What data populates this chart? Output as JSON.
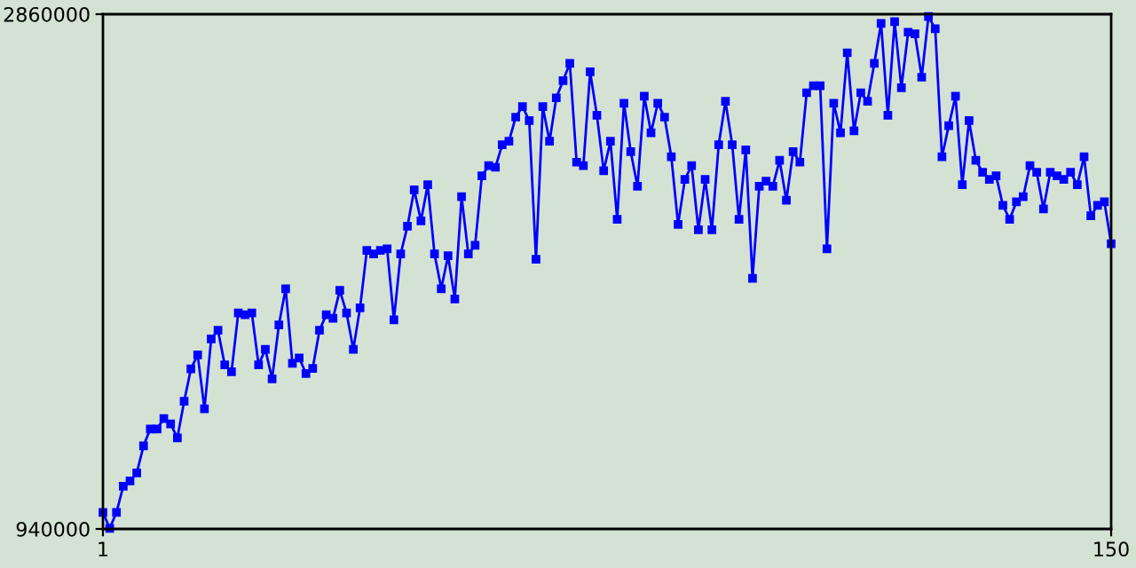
{
  "chart_data": {
    "type": "line",
    "x": [
      1,
      2,
      3,
      4,
      5,
      6,
      7,
      8,
      9,
      10,
      11,
      12,
      13,
      14,
      15,
      16,
      17,
      18,
      19,
      20,
      21,
      22,
      23,
      24,
      25,
      26,
      27,
      28,
      29,
      30,
      31,
      32,
      33,
      34,
      35,
      36,
      37,
      38,
      39,
      40,
      41,
      42,
      43,
      44,
      45,
      46,
      47,
      48,
      49,
      50,
      51,
      52,
      53,
      54,
      55,
      56,
      57,
      58,
      59,
      60,
      61,
      62,
      63,
      64,
      65,
      66,
      67,
      68,
      69,
      70,
      71,
      72,
      73,
      74,
      75,
      76,
      77,
      78,
      79,
      80,
      81,
      82,
      83,
      84,
      85,
      86,
      87,
      88,
      89,
      90,
      91,
      92,
      93,
      94,
      95,
      96,
      97,
      98,
      99,
      100,
      101,
      102,
      103,
      104,
      105,
      106,
      107,
      108,
      109,
      110,
      111,
      112,
      113,
      114,
      115,
      116,
      117,
      118,
      119,
      120,
      121,
      122,
      123,
      124,
      125,
      126,
      127,
      128,
      129,
      130,
      131,
      132,
      133,
      134,
      135,
      136,
      137,
      138,
      139,
      140,
      141,
      142,
      143,
      144,
      145,
      146,
      147,
      148,
      149,
      150
    ],
    "series": [
      {
        "color": "#0000ff",
        "values": [
          1002000,
          942000,
          1002000,
          1099000,
          1119000,
          1149000,
          1250000,
          1313000,
          1313000,
          1352000,
          1332000,
          1280000,
          1416000,
          1537000,
          1589000,
          1388000,
          1649000,
          1681000,
          1552000,
          1526000,
          1746000,
          1739000,
          1746000,
          1552000,
          1610000,
          1500000,
          1701000,
          1836000,
          1558000,
          1578000,
          1520000,
          1539000,
          1681000,
          1739000,
          1726000,
          1830000,
          1746000,
          1610000,
          1765000,
          1979000,
          1966000,
          1979000,
          1985000,
          1720000,
          1966000,
          2069000,
          2205000,
          2089000,
          2224000,
          1966000,
          1836000,
          1959000,
          1798000,
          2179000,
          1966000,
          1998000,
          2257000,
          2295000,
          2289000,
          2373000,
          2386000,
          2476000,
          2515000,
          2463000,
          1946000,
          2515000,
          2386000,
          2548000,
          2612000,
          2677000,
          2308000,
          2295000,
          2645000,
          2483000,
          2276000,
          2386000,
          2095000,
          2528000,
          2347000,
          2218000,
          2554000,
          2418000,
          2528000,
          2476000,
          2328000,
          2076000,
          2244000,
          2295000,
          2056000,
          2244000,
          2056000,
          2373000,
          2535000,
          2373000,
          2095000,
          2354000,
          1875000,
          2218000,
          2237000,
          2218000,
          2315000,
          2166000,
          2347000,
          2308000,
          2567000,
          2593000,
          2593000,
          1985000,
          2528000,
          2418000,
          2716000,
          2425000,
          2567000,
          2535000,
          2677000,
          2826000,
          2483000,
          2832000,
          2586000,
          2793000,
          2787000,
          2625000,
          2851000,
          2806000,
          2328000,
          2444000,
          2554000,
          2224000,
          2463000,
          2315000,
          2270000,
          2244000,
          2257000,
          2147000,
          2095000,
          2160000,
          2179000,
          2295000,
          2270000,
          2134000,
          2270000,
          2257000,
          2244000,
          2270000,
          2224000,
          2328000,
          2108000,
          2147000,
          2160000,
          2004000
        ]
      }
    ],
    "xlim": [
      1,
      150
    ],
    "ylim": [
      940000,
      2860000
    ],
    "xticks": [
      1,
      150
    ],
    "yticks": [
      940000,
      2860000
    ],
    "marker": "square",
    "line_style": "solid"
  }
}
